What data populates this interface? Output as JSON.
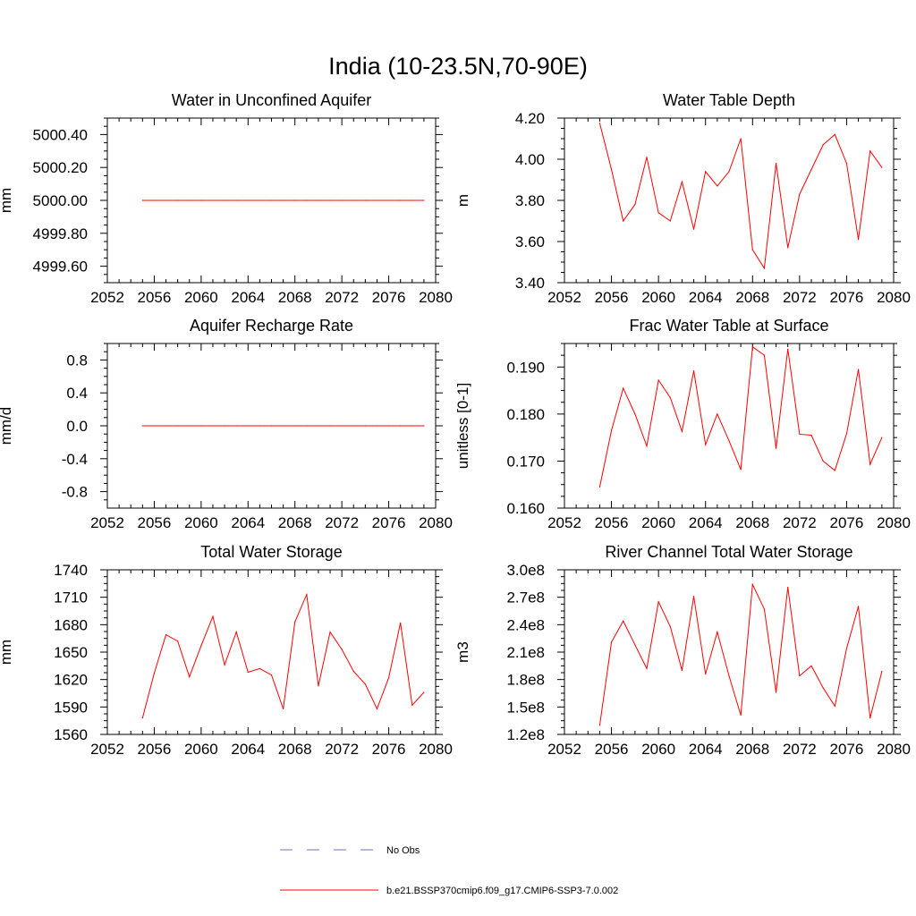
{
  "figure": {
    "title": "India (10-23.5N,70-90E)"
  },
  "legend": {
    "items": [
      {
        "label": "No Obs",
        "color": "#6a73c0",
        "style": "dashed"
      },
      {
        "label": "b.e21.BSSP370cmip6.f09_g17.CMIP6-SSP3-7.0.002",
        "color": "#ff0000",
        "style": "solid"
      }
    ]
  },
  "chart_data": [
    {
      "type": "line",
      "title": "Water in Unconfined Aquifer",
      "ylabel": "mm",
      "xlim": [
        2052,
        2080
      ],
      "ylim": [
        4999.5,
        5000.5
      ],
      "xticks": [
        2052,
        2056,
        2060,
        2064,
        2068,
        2072,
        2076,
        2080
      ],
      "yticks": [
        4999.6,
        4999.8,
        5000.0,
        5000.2,
        5000.4
      ],
      "ytick_labels": [
        "4999.60",
        "4999.80",
        "5000.00",
        "5000.20",
        "5000.40"
      ],
      "x": [
        2055,
        2056,
        2057,
        2058,
        2059,
        2060,
        2061,
        2062,
        2063,
        2064,
        2065,
        2066,
        2067,
        2068,
        2069,
        2070,
        2071,
        2072,
        2073,
        2074,
        2075,
        2076,
        2077,
        2078,
        2079
      ],
      "series": [
        {
          "color": "#ff0000",
          "values": [
            5000,
            5000,
            5000,
            5000,
            5000,
            5000,
            5000,
            5000,
            5000,
            5000,
            5000,
            5000,
            5000,
            5000,
            5000,
            5000,
            5000,
            5000,
            5000,
            5000,
            5000,
            5000,
            5000,
            5000,
            5000
          ]
        }
      ]
    },
    {
      "type": "line",
      "title": "Water Table Depth",
      "ylabel": "m",
      "xlim": [
        2052,
        2080
      ],
      "ylim": [
        3.4,
        4.2
      ],
      "xticks": [
        2052,
        2056,
        2060,
        2064,
        2068,
        2072,
        2076,
        2080
      ],
      "yticks": [
        3.4,
        3.6,
        3.8,
        4.0,
        4.2
      ],
      "ytick_labels": [
        "3.40",
        "3.60",
        "3.80",
        "4.00",
        "4.20"
      ],
      "x": [
        2055,
        2056,
        2057,
        2058,
        2059,
        2060,
        2061,
        2062,
        2063,
        2064,
        2065,
        2066,
        2067,
        2068,
        2069,
        2070,
        2071,
        2072,
        2073,
        2074,
        2075,
        2076,
        2077,
        2078,
        2079
      ],
      "series": [
        {
          "color": "#ff0000",
          "values": [
            4.175,
            3.95,
            3.7,
            3.78,
            4.01,
            3.74,
            3.7,
            3.89,
            3.66,
            3.94,
            3.87,
            3.94,
            4.1,
            3.56,
            3.47,
            3.98,
            3.57,
            3.83,
            3.95,
            4.07,
            4.12,
            3.98,
            3.61,
            4.04,
            3.96
          ]
        }
      ]
    },
    {
      "type": "line",
      "title": "Aquifer Recharge Rate",
      "ylabel": "mm/d",
      "xlim": [
        2052,
        2080
      ],
      "ylim": [
        -1.0,
        1.0
      ],
      "xticks": [
        2052,
        2056,
        2060,
        2064,
        2068,
        2072,
        2076,
        2080
      ],
      "yticks": [
        -0.8,
        -0.4,
        0.0,
        0.4,
        0.8
      ],
      "ytick_labels": [
        "-0.8",
        "-0.4",
        "0.0",
        "0.4",
        "0.8"
      ],
      "x": [
        2055,
        2056,
        2057,
        2058,
        2059,
        2060,
        2061,
        2062,
        2063,
        2064,
        2065,
        2066,
        2067,
        2068,
        2069,
        2070,
        2071,
        2072,
        2073,
        2074,
        2075,
        2076,
        2077,
        2078,
        2079
      ],
      "series": [
        {
          "color": "#ff0000",
          "values": [
            0,
            0,
            0,
            0,
            0,
            0,
            0,
            0,
            0,
            0,
            0,
            0,
            0,
            0,
            0,
            0,
            0,
            0,
            0,
            0,
            0,
            0,
            0,
            0,
            0
          ]
        }
      ]
    },
    {
      "type": "line",
      "title": "Frac Water Table at Surface",
      "ylabel": "unitless [0-1]",
      "xlim": [
        2052,
        2080
      ],
      "ylim": [
        0.16,
        0.195
      ],
      "xticks": [
        2052,
        2056,
        2060,
        2064,
        2068,
        2072,
        2076,
        2080
      ],
      "yticks": [
        0.16,
        0.17,
        0.18,
        0.19
      ],
      "ytick_labels": [
        "0.160",
        "0.170",
        "0.180",
        "0.190"
      ],
      "x": [
        2055,
        2056,
        2057,
        2058,
        2059,
        2060,
        2061,
        2062,
        2063,
        2064,
        2065,
        2066,
        2067,
        2068,
        2069,
        2070,
        2071,
        2072,
        2073,
        2074,
        2075,
        2076,
        2077,
        2078,
        2079
      ],
      "series": [
        {
          "color": "#ff0000",
          "values": [
            0.1645,
            0.1765,
            0.1855,
            0.18,
            0.1732,
            0.1872,
            0.1835,
            0.1763,
            0.1892,
            0.1735,
            0.18,
            0.1743,
            0.1682,
            0.1943,
            0.1925,
            0.1727,
            0.1938,
            0.1757,
            0.1755,
            0.17,
            0.168,
            0.1758,
            0.1895,
            0.1693,
            0.175
          ]
        }
      ]
    },
    {
      "type": "line",
      "title": "Total Water Storage",
      "ylabel": "mm",
      "xlim": [
        2052,
        2080
      ],
      "ylim": [
        1560,
        1740
      ],
      "xticks": [
        2052,
        2056,
        2060,
        2064,
        2068,
        2072,
        2076,
        2080
      ],
      "yticks": [
        1560,
        1590,
        1620,
        1650,
        1680,
        1710,
        1740
      ],
      "ytick_labels": [
        "1560",
        "1590",
        "1620",
        "1650",
        "1680",
        "1710",
        "1740"
      ],
      "x": [
        2055,
        2056,
        2057,
        2058,
        2059,
        2060,
        2061,
        2062,
        2063,
        2064,
        2065,
        2066,
        2067,
        2068,
        2069,
        2070,
        2071,
        2072,
        2073,
        2074,
        2075,
        2076,
        2077,
        2078,
        2079
      ],
      "series": [
        {
          "color": "#ff0000",
          "values": [
            1578,
            1627,
            1669,
            1662,
            1623,
            1657,
            1689,
            1636,
            1672,
            1628,
            1632,
            1625,
            1588,
            1683,
            1713,
            1613,
            1672,
            1653,
            1629,
            1615,
            1588,
            1622,
            1682,
            1592,
            1606
          ]
        }
      ]
    },
    {
      "type": "line",
      "title": "River Channel Total Water Storage",
      "ylabel": "m3",
      "xlim": [
        2052,
        2080
      ],
      "ylim": [
        120000000,
        300000000
      ],
      "xticks": [
        2052,
        2056,
        2060,
        2064,
        2068,
        2072,
        2076,
        2080
      ],
      "yticks": [
        120000000,
        150000000,
        180000000,
        210000000,
        240000000,
        270000000,
        300000000
      ],
      "ytick_labels": [
        "1.2e8",
        "1.5e8",
        "1.8e8",
        "2.1e8",
        "2.4e8",
        "2.7e8",
        "3.0e8"
      ],
      "x": [
        2055,
        2056,
        2057,
        2058,
        2059,
        2060,
        2061,
        2062,
        2063,
        2064,
        2065,
        2066,
        2067,
        2068,
        2069,
        2070,
        2071,
        2072,
        2073,
        2074,
        2075,
        2076,
        2077,
        2078,
        2079
      ],
      "series": [
        {
          "color": "#ff0000",
          "values": [
            130000000,
            221000000,
            244000000,
            218000000,
            192000000,
            265000000,
            238000000,
            190000000,
            271000000,
            186000000,
            232000000,
            184000000,
            141000000,
            284000000,
            257000000,
            166000000,
            281000000,
            184000000,
            195000000,
            171000000,
            151000000,
            214000000,
            260000000,
            138000000,
            189000000
          ]
        }
      ]
    }
  ]
}
